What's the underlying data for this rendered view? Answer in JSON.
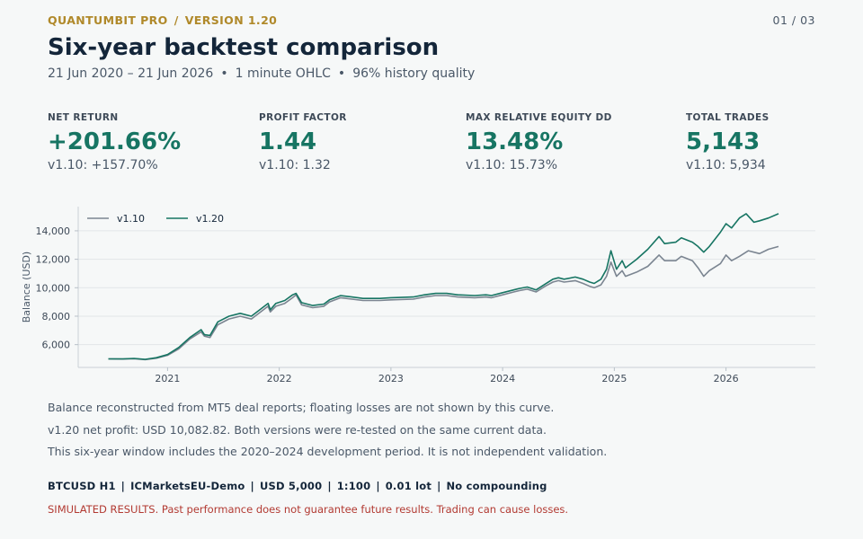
{
  "header": {
    "brand": "QUANTUMBIT PRO",
    "version": "VERSION 1.20",
    "page": "01 / 03",
    "title": "Six-year backtest comparison",
    "subtitle_parts": [
      "21 Jun 2020 – 21 Jun 2026",
      "1 minute OHLC",
      "96% history quality"
    ]
  },
  "kpis": [
    {
      "label": "NET RETURN",
      "value": "+201.66%",
      "compare": "v1.10: +157.70%"
    },
    {
      "label": "PROFIT FACTOR",
      "value": "1.44",
      "compare": "v1.10: 1.32"
    },
    {
      "label": "MAX RELATIVE EQUITY DD",
      "value": "13.48%",
      "compare": "v1.10: 15.73%"
    },
    {
      "label": "TOTAL TRADES",
      "value": "5,143",
      "compare": "v1.10: 5,934"
    }
  ],
  "notes": [
    "Balance reconstructed from MT5 deal reports; floating losses are not shown by this curve.",
    "v1.20 net profit: USD 10,082.82. Both versions were re-tested on the same current data.",
    "This six-year window includes the 2020–2024 development period. It is not independent validation."
  ],
  "specs": [
    "BTCUSD H1",
    "ICMarketsEU-Demo",
    "USD 5,000",
    "1:100",
    "0.01 lot",
    "No compounding"
  ],
  "disclaimer": "SIMULATED RESULTS. Past performance does not guarantee future results. Trading can cause losses.",
  "colors": {
    "accent": "#177563",
    "brand": "#b0892a",
    "warning": "#b23a32",
    "v110": "#7b8591",
    "v120": "#177563"
  },
  "chart_data": {
    "type": "line",
    "ylabel": "Balance (USD)",
    "xlabel": "",
    "xlim": [
      2020.2,
      2026.8
    ],
    "ylim": [
      4400,
      15700
    ],
    "x_ticks": [
      2021,
      2022,
      2023,
      2024,
      2025,
      2026
    ],
    "x_tick_labels": [
      "2021",
      "2022",
      "2023",
      "2024",
      "2025",
      "2026"
    ],
    "y_ticks": [
      6000,
      8000,
      10000,
      12000,
      14000
    ],
    "y_tick_labels": [
      "6,000",
      "8,000",
      "10,000",
      "12,000",
      "14,000"
    ],
    "grid": "horizontal",
    "legend": "top-left",
    "series": [
      {
        "name": "v1.10",
        "color": "#7b8591",
        "points": [
          [
            2020.47,
            5000
          ],
          [
            2020.6,
            4990
          ],
          [
            2020.7,
            5010
          ],
          [
            2020.8,
            4950
          ],
          [
            2020.9,
            5050
          ],
          [
            2021.0,
            5250
          ],
          [
            2021.1,
            5700
          ],
          [
            2021.2,
            6400
          ],
          [
            2021.3,
            6900
          ],
          [
            2021.33,
            6600
          ],
          [
            2021.38,
            6500
          ],
          [
            2021.45,
            7400
          ],
          [
            2021.55,
            7800
          ],
          [
            2021.65,
            8000
          ],
          [
            2021.75,
            7800
          ],
          [
            2021.85,
            8400
          ],
          [
            2021.9,
            8700
          ],
          [
            2021.92,
            8300
          ],
          [
            2021.97,
            8700
          ],
          [
            2022.05,
            8900
          ],
          [
            2022.12,
            9300
          ],
          [
            2022.15,
            9500
          ],
          [
            2022.2,
            8800
          ],
          [
            2022.3,
            8600
          ],
          [
            2022.4,
            8700
          ],
          [
            2022.45,
            9000
          ],
          [
            2022.55,
            9300
          ],
          [
            2022.65,
            9200
          ],
          [
            2022.75,
            9100
          ],
          [
            2022.9,
            9100
          ],
          [
            2023.0,
            9150
          ],
          [
            2023.2,
            9200
          ],
          [
            2023.3,
            9350
          ],
          [
            2023.4,
            9450
          ],
          [
            2023.5,
            9450
          ],
          [
            2023.6,
            9350
          ],
          [
            2023.75,
            9300
          ],
          [
            2023.85,
            9350
          ],
          [
            2023.9,
            9300
          ],
          [
            2024.0,
            9500
          ],
          [
            2024.1,
            9700
          ],
          [
            2024.15,
            9800
          ],
          [
            2024.22,
            9900
          ],
          [
            2024.3,
            9700
          ],
          [
            2024.38,
            10100
          ],
          [
            2024.45,
            10400
          ],
          [
            2024.5,
            10500
          ],
          [
            2024.55,
            10400
          ],
          [
            2024.65,
            10500
          ],
          [
            2024.72,
            10300
          ],
          [
            2024.78,
            10100
          ],
          [
            2024.82,
            10000
          ],
          [
            2024.88,
            10200
          ],
          [
            2024.93,
            10800
          ],
          [
            2024.97,
            11800
          ],
          [
            2025.02,
            10800
          ],
          [
            2025.07,
            11200
          ],
          [
            2025.1,
            10800
          ],
          [
            2025.2,
            11100
          ],
          [
            2025.3,
            11500
          ],
          [
            2025.4,
            12300
          ],
          [
            2025.45,
            11900
          ],
          [
            2025.55,
            11900
          ],
          [
            2025.6,
            12200
          ],
          [
            2025.7,
            11900
          ],
          [
            2025.75,
            11400
          ],
          [
            2025.8,
            10800
          ],
          [
            2025.85,
            11200
          ],
          [
            2025.95,
            11700
          ],
          [
            2026.0,
            12300
          ],
          [
            2026.05,
            11900
          ],
          [
            2026.12,
            12200
          ],
          [
            2026.2,
            12600
          ],
          [
            2026.3,
            12400
          ],
          [
            2026.38,
            12700
          ],
          [
            2026.47,
            12900
          ]
        ]
      },
      {
        "name": "v1.20",
        "color": "#177563",
        "points": [
          [
            2020.47,
            5000
          ],
          [
            2020.6,
            5000
          ],
          [
            2020.7,
            5030
          ],
          [
            2020.8,
            4970
          ],
          [
            2020.9,
            5080
          ],
          [
            2021.0,
            5300
          ],
          [
            2021.1,
            5800
          ],
          [
            2021.2,
            6500
          ],
          [
            2021.3,
            7050
          ],
          [
            2021.33,
            6700
          ],
          [
            2021.38,
            6650
          ],
          [
            2021.45,
            7600
          ],
          [
            2021.55,
            8000
          ],
          [
            2021.65,
            8200
          ],
          [
            2021.75,
            8000
          ],
          [
            2021.85,
            8600
          ],
          [
            2021.9,
            8900
          ],
          [
            2021.92,
            8450
          ],
          [
            2021.97,
            8900
          ],
          [
            2022.05,
            9100
          ],
          [
            2022.12,
            9500
          ],
          [
            2022.15,
            9600
          ],
          [
            2022.2,
            8950
          ],
          [
            2022.3,
            8750
          ],
          [
            2022.4,
            8850
          ],
          [
            2022.45,
            9150
          ],
          [
            2022.55,
            9450
          ],
          [
            2022.65,
            9350
          ],
          [
            2022.75,
            9250
          ],
          [
            2022.9,
            9250
          ],
          [
            2023.0,
            9300
          ],
          [
            2023.2,
            9350
          ],
          [
            2023.3,
            9500
          ],
          [
            2023.4,
            9600
          ],
          [
            2023.5,
            9600
          ],
          [
            2023.6,
            9500
          ],
          [
            2023.75,
            9450
          ],
          [
            2023.85,
            9500
          ],
          [
            2023.9,
            9450
          ],
          [
            2024.0,
            9650
          ],
          [
            2024.1,
            9850
          ],
          [
            2024.15,
            9950
          ],
          [
            2024.22,
            10050
          ],
          [
            2024.3,
            9850
          ],
          [
            2024.38,
            10250
          ],
          [
            2024.45,
            10600
          ],
          [
            2024.5,
            10700
          ],
          [
            2024.55,
            10600
          ],
          [
            2024.65,
            10750
          ],
          [
            2024.72,
            10600
          ],
          [
            2024.78,
            10400
          ],
          [
            2024.82,
            10300
          ],
          [
            2024.88,
            10600
          ],
          [
            2024.93,
            11300
          ],
          [
            2024.97,
            12600
          ],
          [
            2025.02,
            11300
          ],
          [
            2025.07,
            11900
          ],
          [
            2025.1,
            11400
          ],
          [
            2025.2,
            12000
          ],
          [
            2025.3,
            12700
          ],
          [
            2025.4,
            13600
          ],
          [
            2025.45,
            13100
          ],
          [
            2025.55,
            13200
          ],
          [
            2025.6,
            13500
          ],
          [
            2025.7,
            13200
          ],
          [
            2025.75,
            12900
          ],
          [
            2025.8,
            12500
          ],
          [
            2025.85,
            12900
          ],
          [
            2025.95,
            13900
          ],
          [
            2026.0,
            14500
          ],
          [
            2026.05,
            14200
          ],
          [
            2026.12,
            14900
          ],
          [
            2026.18,
            15200
          ],
          [
            2026.25,
            14600
          ],
          [
            2026.3,
            14700
          ],
          [
            2026.38,
            14900
          ],
          [
            2026.47,
            15200
          ]
        ]
      }
    ]
  }
}
